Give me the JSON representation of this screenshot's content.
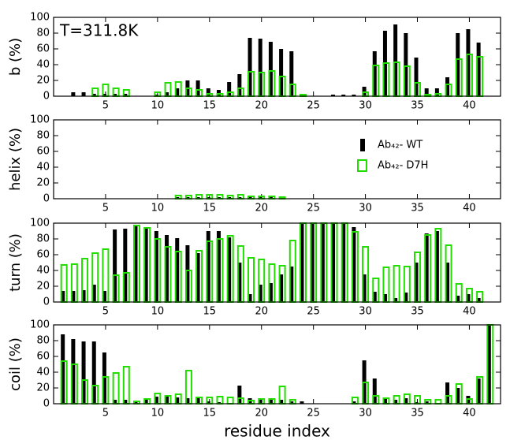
{
  "chart_data": [
    {
      "type": "bar",
      "ylabel": "b (%)",
      "annotation": "T=311.8K",
      "x": [
        1,
        2,
        3,
        4,
        5,
        6,
        7,
        8,
        9,
        10,
        11,
        12,
        13,
        14,
        15,
        16,
        17,
        18,
        19,
        20,
        21,
        22,
        23,
        24,
        25,
        26,
        27,
        28,
        29,
        30,
        31,
        32,
        33,
        34,
        35,
        36,
        37,
        38,
        39,
        40,
        41,
        42
      ],
      "xlim": [
        0,
        43
      ],
      "xticks": [
        5,
        10,
        15,
        20,
        25,
        30,
        35,
        40
      ],
      "ylim": [
        0,
        100
      ],
      "yticks": [
        0,
        20,
        40,
        60,
        80,
        100
      ],
      "series": [
        {
          "color": "#000000",
          "values": [
            0,
            5,
            5,
            3,
            3,
            3,
            3,
            0,
            0,
            2,
            5,
            10,
            20,
            20,
            10,
            8,
            18,
            28,
            74,
            73,
            69,
            60,
            57,
            2,
            0,
            0,
            2,
            2,
            2,
            12,
            57,
            83,
            91,
            80,
            49,
            10,
            10,
            24,
            80,
            85,
            68,
            0
          ]
        },
        {
          "color": "#22dd00",
          "values": [
            0,
            0,
            0,
            10,
            15,
            10,
            8,
            0,
            0,
            5,
            17,
            18,
            10,
            8,
            3,
            3,
            5,
            10,
            31,
            30,
            32,
            25,
            15,
            2,
            0,
            0,
            0,
            0,
            0,
            5,
            39,
            42,
            43,
            38,
            17,
            2,
            3,
            15,
            47,
            53,
            50,
            0
          ]
        }
      ]
    },
    {
      "type": "bar",
      "ylabel": "helix (%)",
      "legend": "upper right",
      "x": [
        1,
        2,
        3,
        4,
        5,
        6,
        7,
        8,
        9,
        10,
        11,
        12,
        13,
        14,
        15,
        16,
        17,
        18,
        19,
        20,
        21,
        22,
        23,
        24,
        25,
        26,
        27,
        28,
        29,
        30,
        31,
        32,
        33,
        34,
        35,
        36,
        37,
        38,
        39,
        40,
        41,
        42
      ],
      "xlim": [
        0,
        43
      ],
      "xticks": [
        5,
        10,
        15,
        20,
        25,
        30,
        35,
        40
      ],
      "ylim": [
        0,
        100
      ],
      "yticks": [
        0,
        20,
        40,
        60,
        80,
        100
      ],
      "series": [
        {
          "name": "Ab₄₂- WT",
          "color": "#000000",
          "values": [
            0,
            0,
            0,
            0,
            0,
            0,
            0,
            0,
            0,
            0,
            0,
            2,
            2,
            2,
            2,
            2,
            2,
            2,
            2,
            2,
            2,
            0,
            0,
            0,
            0,
            0,
            0,
            0,
            0,
            0,
            0,
            0,
            0,
            0,
            0,
            0,
            0,
            0,
            0,
            0,
            0,
            0
          ]
        },
        {
          "name": "Ab₄₂- D7H",
          "color": "#22dd00",
          "values": [
            0,
            0,
            0,
            0,
            0,
            0,
            0,
            0,
            0,
            0,
            0,
            4,
            4,
            5,
            5,
            5,
            4,
            5,
            3,
            3,
            3,
            2,
            0,
            0,
            0,
            0,
            0,
            0,
            0,
            0,
            0,
            0,
            0,
            0,
            0,
            0,
            0,
            0,
            0,
            0,
            0,
            0
          ]
        }
      ]
    },
    {
      "type": "bar",
      "ylabel": "turn (%)",
      "x": [
        1,
        2,
        3,
        4,
        5,
        6,
        7,
        8,
        9,
        10,
        11,
        12,
        13,
        14,
        15,
        16,
        17,
        18,
        19,
        20,
        21,
        22,
        23,
        24,
        25,
        26,
        27,
        28,
        29,
        30,
        31,
        32,
        33,
        34,
        35,
        36,
        37,
        38,
        39,
        40,
        41,
        42
      ],
      "xlim": [
        0,
        43
      ],
      "xticks": [
        5,
        10,
        15,
        20,
        25,
        30,
        35,
        40
      ],
      "ylim": [
        0,
        100
      ],
      "yticks": [
        0,
        20,
        40,
        60,
        80,
        100
      ],
      "series": [
        {
          "color": "#000000",
          "values": [
            14,
            14,
            15,
            22,
            14,
            92,
            93,
            97,
            95,
            90,
            85,
            81,
            72,
            62,
            90,
            90,
            82,
            50,
            10,
            22,
            24,
            35,
            45,
            100,
            100,
            100,
            100,
            100,
            95,
            35,
            13,
            10,
            5,
            12,
            50,
            87,
            90,
            50,
            8,
            10,
            5,
            0
          ]
        },
        {
          "color": "#22dd00",
          "values": [
            47,
            48,
            55,
            62,
            67,
            34,
            37,
            97,
            94,
            80,
            70,
            64,
            40,
            65,
            77,
            80,
            84,
            71,
            56,
            54,
            48,
            46,
            78,
            100,
            100,
            100,
            100,
            100,
            89,
            70,
            30,
            44,
            46,
            45,
            63,
            85,
            93,
            72,
            23,
            17,
            13,
            0
          ]
        }
      ]
    },
    {
      "type": "bar",
      "ylabel": "coil (%)",
      "xlabel": "residue index",
      "x": [
        1,
        2,
        3,
        4,
        5,
        6,
        7,
        8,
        9,
        10,
        11,
        12,
        13,
        14,
        15,
        16,
        17,
        18,
        19,
        20,
        21,
        22,
        23,
        24,
        25,
        26,
        27,
        28,
        29,
        30,
        31,
        32,
        33,
        34,
        35,
        36,
        37,
        38,
        39,
        40,
        41,
        42
      ],
      "xlim": [
        0,
        43
      ],
      "xticks": [
        5,
        10,
        15,
        20,
        25,
        30,
        35,
        40
      ],
      "ylim": [
        0,
        100
      ],
      "yticks": [
        0,
        20,
        40,
        60,
        80,
        100
      ],
      "series": [
        {
          "color": "#000000",
          "values": [
            88,
            82,
            79,
            79,
            65,
            5,
            5,
            2,
            5,
            9,
            10,
            8,
            7,
            8,
            3,
            2,
            0,
            23,
            7,
            7,
            7,
            5,
            3,
            3,
            0,
            0,
            0,
            0,
            3,
            55,
            32,
            6,
            5,
            7,
            2,
            3,
            0,
            27,
            20,
            10,
            32,
            100
          ]
        },
        {
          "color": "#22dd00",
          "values": [
            54,
            50,
            30,
            23,
            34,
            39,
            47,
            3,
            6,
            13,
            10,
            12,
            42,
            8,
            8,
            9,
            8,
            7,
            4,
            6,
            6,
            22,
            5,
            0,
            0,
            0,
            0,
            0,
            8,
            27,
            10,
            7,
            10,
            12,
            10,
            5,
            5,
            10,
            25,
            6,
            34,
            100
          ]
        }
      ]
    }
  ]
}
